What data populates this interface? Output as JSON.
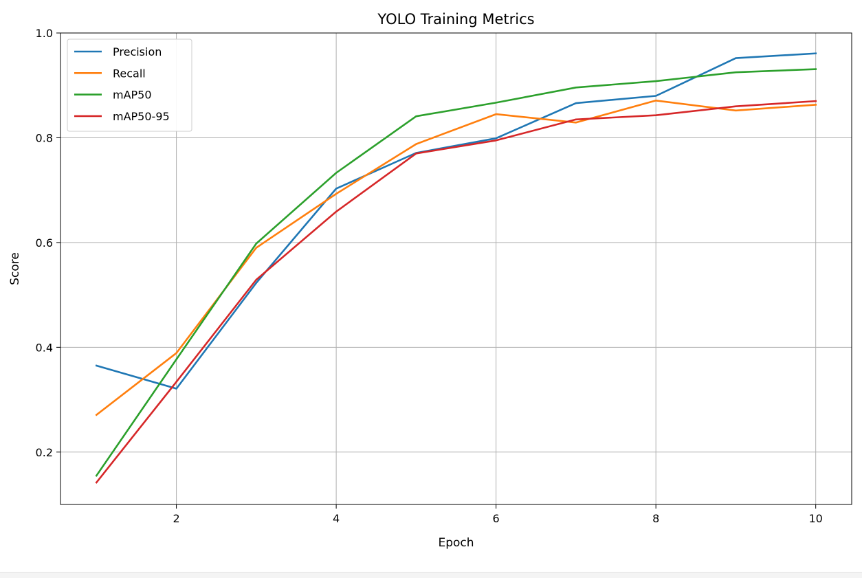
{
  "chart_data": {
    "type": "line",
    "title": "YOLO Training Metrics",
    "xlabel": "Epoch",
    "ylabel": "Score",
    "x": [
      1,
      2,
      3,
      4,
      5,
      6,
      7,
      8,
      9,
      10
    ],
    "xlim": [
      0.55,
      10.45
    ],
    "ylim": [
      0.1,
      1.0
    ],
    "xticks": [
      2,
      4,
      6,
      8,
      10
    ],
    "yticks": [
      0.2,
      0.4,
      0.6,
      0.8,
      1.0
    ],
    "xtick_labels": [
      "2",
      "4",
      "6",
      "8",
      "10"
    ],
    "ytick_labels": [
      "0.2",
      "0.4",
      "0.6",
      "0.8",
      "1.0"
    ],
    "grid": true,
    "legend_position": "top-left",
    "series": [
      {
        "name": "Precision",
        "color": "#1f77b4",
        "values": [
          0.365,
          0.321,
          0.523,
          0.703,
          0.771,
          0.799,
          0.866,
          0.88,
          0.952,
          0.961
        ]
      },
      {
        "name": "Recall",
        "color": "#ff7f0e",
        "values": [
          0.271,
          0.389,
          0.59,
          0.693,
          0.788,
          0.845,
          0.829,
          0.871,
          0.852,
          0.863
        ]
      },
      {
        "name": "mAP50",
        "color": "#2ca02c",
        "values": [
          0.155,
          0.377,
          0.598,
          0.733,
          0.841,
          0.867,
          0.896,
          0.908,
          0.925,
          0.931
        ]
      },
      {
        "name": "mAP50-95",
        "color": "#d62728",
        "values": [
          0.142,
          0.334,
          0.529,
          0.659,
          0.77,
          0.795,
          0.835,
          0.843,
          0.86,
          0.87
        ]
      }
    ]
  }
}
